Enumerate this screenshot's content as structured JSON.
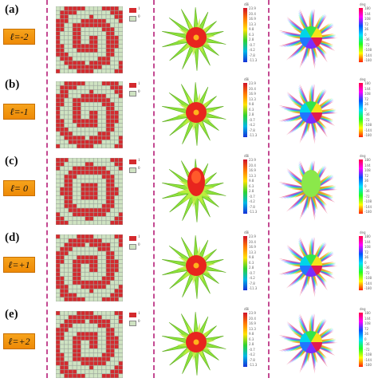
{
  "panels": [
    {
      "letter": "(a)",
      "l_label": "ℓ=-2",
      "l": -2
    },
    {
      "letter": "(b)",
      "l_label": "ℓ=-1",
      "l": -1
    },
    {
      "letter": "(c)",
      "l_label": "ℓ= 0",
      "l": 0
    },
    {
      "letter": "(d)",
      "l_label": "ℓ=+1",
      "l": 1
    },
    {
      "letter": "(e)",
      "l_label": "ℓ=+2",
      "l": 2
    }
  ],
  "legend": {
    "state_one": "1",
    "state_zero": "0"
  },
  "gain_colorbar": {
    "unit": "dBi",
    "ticks": [
      "23.9",
      "20.4",
      "16.9",
      "13.3",
      "9.8",
      "6.3",
      "2.8",
      "-0.7",
      "-4.2",
      "-7.8",
      "-11.3"
    ]
  },
  "phase_colorbar": {
    "unit": "deg",
    "ticks": [
      "180",
      "144",
      "108",
      "72",
      "36",
      "0",
      "-36",
      "-72",
      "-108",
      "-144",
      "-180"
    ]
  },
  "colors": {
    "coding_one": "#d42a2e",
    "coding_zero": "#cfe3c2",
    "divider": "#c44a92",
    "label_box": "#f39a12"
  }
}
